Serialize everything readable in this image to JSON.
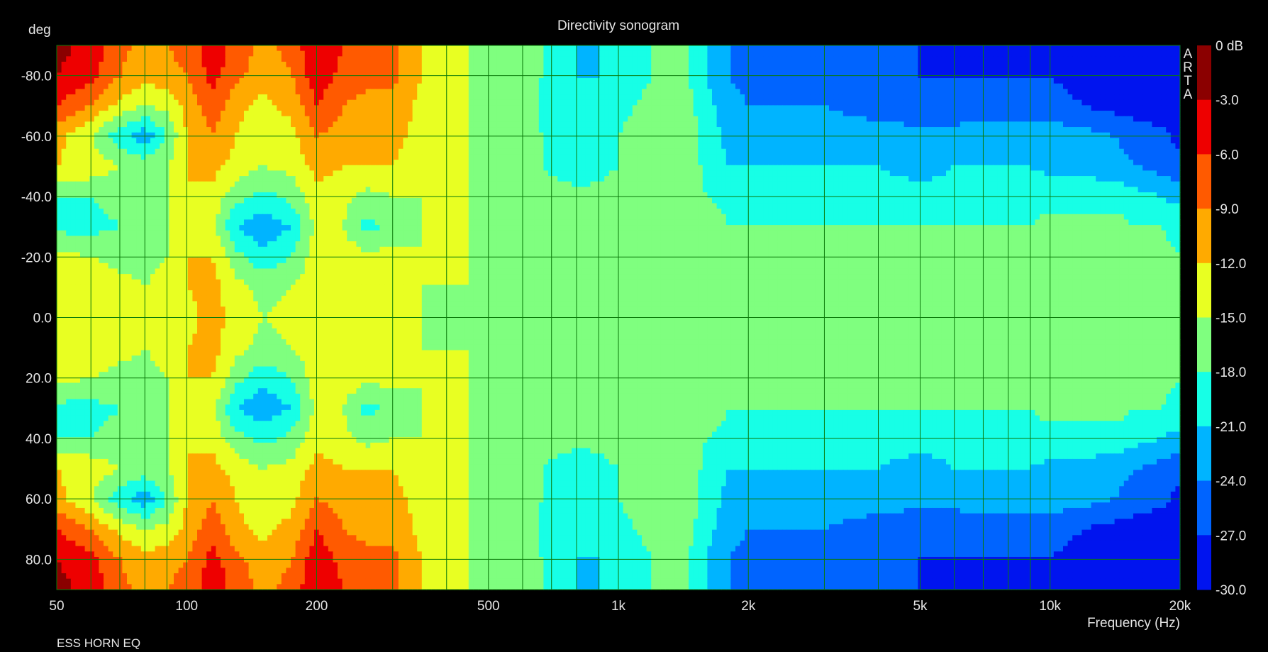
{
  "chart_data": {
    "type": "heatmap",
    "title": "Directivity sonogram",
    "xlabel": "Frequency (Hz)",
    "ylabel": "deg",
    "brand": "ARTA",
    "footer": "ESS HORN EQ",
    "x_scale": "log",
    "xlim": [
      50,
      20000
    ],
    "ylim": [
      -90,
      90
    ],
    "x_ticks": [
      {
        "value": 50,
        "label": "50"
      },
      {
        "value": 100,
        "label": "100"
      },
      {
        "value": 200,
        "label": "200"
      },
      {
        "value": 500,
        "label": "500"
      },
      {
        "value": 1000,
        "label": "1k"
      },
      {
        "value": 2000,
        "label": "2k"
      },
      {
        "value": 5000,
        "label": "5k"
      },
      {
        "value": 10000,
        "label": "10k"
      },
      {
        "value": 20000,
        "label": "20k"
      }
    ],
    "x_minor_gridlines": [
      60,
      70,
      80,
      90,
      300,
      400,
      600,
      700,
      800,
      900,
      3000,
      4000,
      6000,
      7000,
      8000,
      9000
    ],
    "y_ticks": [
      {
        "value": -80,
        "label": "-80.0"
      },
      {
        "value": -60,
        "label": "-60.0"
      },
      {
        "value": -40,
        "label": "-40.0"
      },
      {
        "value": -20,
        "label": "-20.0"
      },
      {
        "value": 0,
        "label": "0.0"
      },
      {
        "value": 20,
        "label": "20.0"
      },
      {
        "value": 40,
        "label": "40.0"
      },
      {
        "value": 60,
        "label": "60.0"
      },
      {
        "value": 80,
        "label": "80.0"
      }
    ],
    "grid": true,
    "colorbar": {
      "range": [
        -30,
        0
      ],
      "labels": [
        "0 dB",
        "-3.0",
        "-6.0",
        "-9.0",
        "-12.0",
        "-15.0",
        "-18.0",
        "-21.0",
        "-24.0",
        "-27.0",
        "-30.0"
      ],
      "colors": [
        "#8b0000",
        "#ee0000",
        "#ff5a00",
        "#ffaa00",
        "#e8ff22",
        "#7fff7f",
        "#17ffe6",
        "#00b4ff",
        "#0064ff",
        "#0014ef"
      ]
    },
    "level_map": {
      "freq_hz": [
        50,
        60,
        70,
        80,
        90,
        100,
        115,
        130,
        150,
        175,
        200,
        230,
        260,
        300,
        350,
        400,
        450,
        500,
        550,
        600,
        700,
        800,
        900,
        1000,
        1200,
        1400,
        1600,
        1800,
        2000,
        2500,
        3000,
        4000,
        5000,
        6000,
        7000,
        8000,
        9000,
        10000,
        12000,
        14000,
        16000,
        18000,
        20000
      ],
      "angle_deg": [
        0,
        10,
        20,
        30,
        40,
        50,
        60,
        70,
        80,
        90
      ],
      "level_db": [
        [
          -13,
          -13,
          -15,
          -15,
          -15,
          -13,
          -11,
          -13,
          -15,
          -14,
          -12,
          -13,
          -13,
          -14,
          -15,
          -15,
          -15,
          -15,
          -15,
          -15,
          -15,
          -15,
          -15,
          -15,
          -15,
          -15,
          -15,
          -15,
          -15,
          -15,
          -15,
          -15,
          -15,
          -15,
          -15,
          -15,
          -15,
          -15,
          -15,
          -15,
          -15,
          -15,
          -15
        ],
        [
          -13,
          -13,
          -14,
          -15,
          -14,
          -12,
          -11,
          -14,
          -16,
          -15,
          -13,
          -13,
          -13,
          -14,
          -15,
          -15,
          -15,
          -15,
          -15,
          -15,
          -15,
          -15,
          -15,
          -15,
          -15,
          -15,
          -15,
          -15,
          -15,
          -15,
          -15,
          -15,
          -15,
          -15,
          -15,
          -15,
          -15,
          -15,
          -15,
          -16,
          -16,
          -16,
          -16
        ],
        [
          -14,
          -15,
          -16,
          -16,
          -15,
          -12,
          -12,
          -17,
          -20,
          -18,
          -13,
          -13,
          -14,
          -14,
          -15,
          -14,
          -15,
          -15,
          -15,
          -15,
          -15,
          -15,
          -15,
          -15,
          -15,
          -15,
          -15,
          -15,
          -15,
          -15,
          -15,
          -15,
          -15,
          -15,
          -15,
          -15,
          -15,
          -15,
          -15,
          -16,
          -17,
          -17,
          -18
        ],
        [
          -19,
          -19,
          -18,
          -17,
          -15,
          -12,
          -14,
          -21,
          -23,
          -21,
          -14,
          -15,
          -19,
          -17,
          -15,
          -14,
          -15,
          -15,
          -15,
          -15,
          -16,
          -16,
          -15,
          -15,
          -15,
          -15,
          -16,
          -18,
          -18,
          -18,
          -18,
          -18,
          -18,
          -18,
          -18,
          -18,
          -18,
          -17,
          -17,
          -17,
          -18,
          -18,
          -19
        ],
        [
          -18,
          -18,
          -17,
          -16,
          -15,
          -12,
          -13,
          -17,
          -19,
          -17,
          -13,
          -14,
          -16,
          -15,
          -15,
          -14,
          -15,
          -15,
          -15,
          -15,
          -16,
          -17,
          -17,
          -16,
          -15,
          -15,
          -18,
          -19,
          -19,
          -19,
          -19,
          -20,
          -20,
          -20,
          -20,
          -20,
          -19,
          -19,
          -19,
          -19,
          -20,
          -21,
          -22
        ],
        [
          -12,
          -13,
          -15,
          -16,
          -15,
          -12,
          -11,
          -13,
          -15,
          -14,
          -11,
          -12,
          -12,
          -12,
          -14,
          -14,
          -15,
          -15,
          -15,
          -16,
          -19,
          -20,
          -19,
          -18,
          -16,
          -15,
          -19,
          -21,
          -21,
          -21,
          -21,
          -21,
          -22,
          -21,
          -21,
          -21,
          -21,
          -22,
          -22,
          -23,
          -24,
          -25,
          -26
        ],
        [
          -11,
          -15,
          -20,
          -23,
          -18,
          -12,
          -9,
          -12,
          -14,
          -13,
          -9,
          -10,
          -11,
          -11,
          -13,
          -14,
          -15,
          -15,
          -15,
          -16,
          -19,
          -20,
          -19,
          -18,
          -16,
          -15,
          -19,
          -22,
          -23,
          -23,
          -23,
          -23,
          -23,
          -23,
          -22,
          -22,
          -22,
          -22,
          -23,
          -24,
          -25,
          -26,
          -28
        ],
        [
          -6,
          -9,
          -13,
          -15,
          -14,
          -11,
          -7,
          -11,
          -13,
          -11,
          -6,
          -9,
          -10,
          -10,
          -13,
          -14,
          -15,
          -15,
          -15,
          -16,
          -20,
          -21,
          -20,
          -19,
          -17,
          -16,
          -20,
          -23,
          -24,
          -24,
          -24,
          -25,
          -26,
          -26,
          -26,
          -26,
          -26,
          -26,
          -27,
          -28,
          -29,
          -29,
          -29
        ],
        [
          -3,
          -5,
          -9,
          -11,
          -10,
          -9,
          -5,
          -8,
          -11,
          -9,
          -4,
          -7,
          -8,
          -8,
          -12,
          -14,
          -15,
          -15,
          -15,
          -16,
          -19,
          -21,
          -21,
          -20,
          -18,
          -17,
          -21,
          -24,
          -25,
          -25,
          -26,
          -26,
          -27,
          -27,
          -27,
          -27,
          -27,
          -27,
          -28,
          -28,
          -29,
          -29,
          -29
        ],
        [
          -2,
          -4,
          -8,
          -10,
          -9,
          -8,
          -4,
          -7,
          -10,
          -8,
          -3,
          -6,
          -7,
          -8,
          -12,
          -14,
          -15,
          -15,
          -15,
          -16,
          -19,
          -21,
          -21,
          -20,
          -18,
          -17,
          -21,
          -24,
          -25,
          -26,
          -26,
          -26,
          -27,
          -27,
          -27,
          -27,
          -27,
          -27,
          -28,
          -28,
          -29,
          -29,
          -29
        ]
      ]
    }
  }
}
